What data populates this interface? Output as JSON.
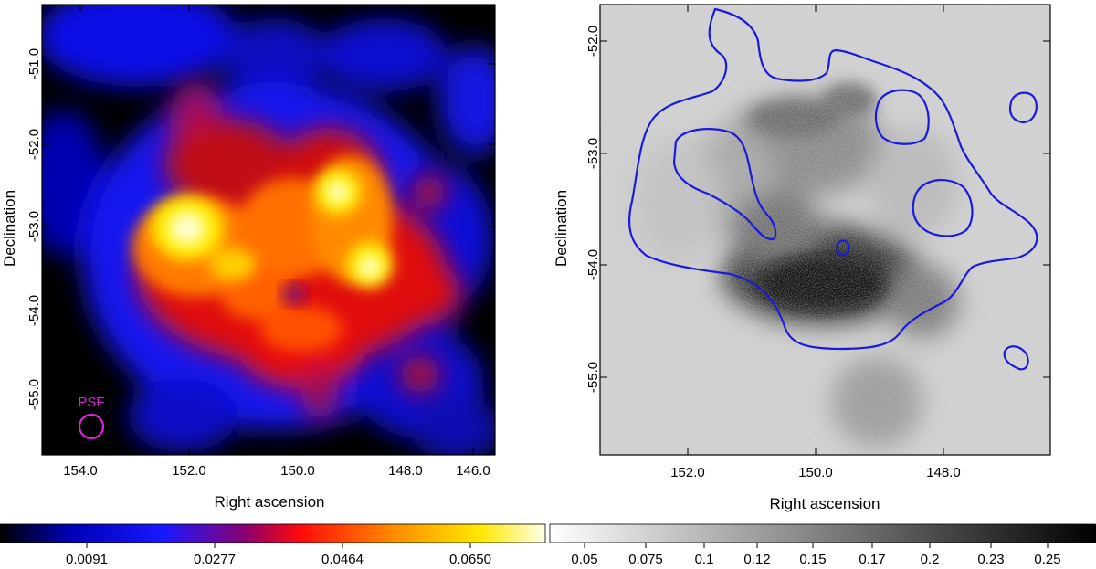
{
  "left_panel": {
    "xlabel": "Right ascension",
    "ylabel": "Declination",
    "x_ticks": [
      "154.0",
      "152.0",
      "150.0",
      "148.0",
      "146.0"
    ],
    "y_ticks": [
      "-51.0",
      "-52.0",
      "-53.0",
      "-54.0",
      "-55.0"
    ],
    "psf_label": "PSF",
    "psf_color": "#e020e0"
  },
  "right_panel": {
    "xlabel": "Right ascension",
    "ylabel": "Declination",
    "x_ticks": [
      "152.0",
      "150.0",
      "148.0"
    ],
    "y_ticks": [
      "-52.0",
      "-53.0",
      "-54.0",
      "-55.0"
    ],
    "contour_color": "#1a1adc"
  },
  "colorbar_left": {
    "colormap": "heat",
    "labels": [
      "0.0091",
      "0.0277",
      "0.0464",
      "0.0650"
    ]
  },
  "colorbar_right": {
    "colormap": "gray",
    "labels": [
      "0.05",
      "0.075",
      "0.1",
      "0.12",
      "0.15",
      "0.17",
      "0.2",
      "0.23",
      "0.25"
    ]
  }
}
